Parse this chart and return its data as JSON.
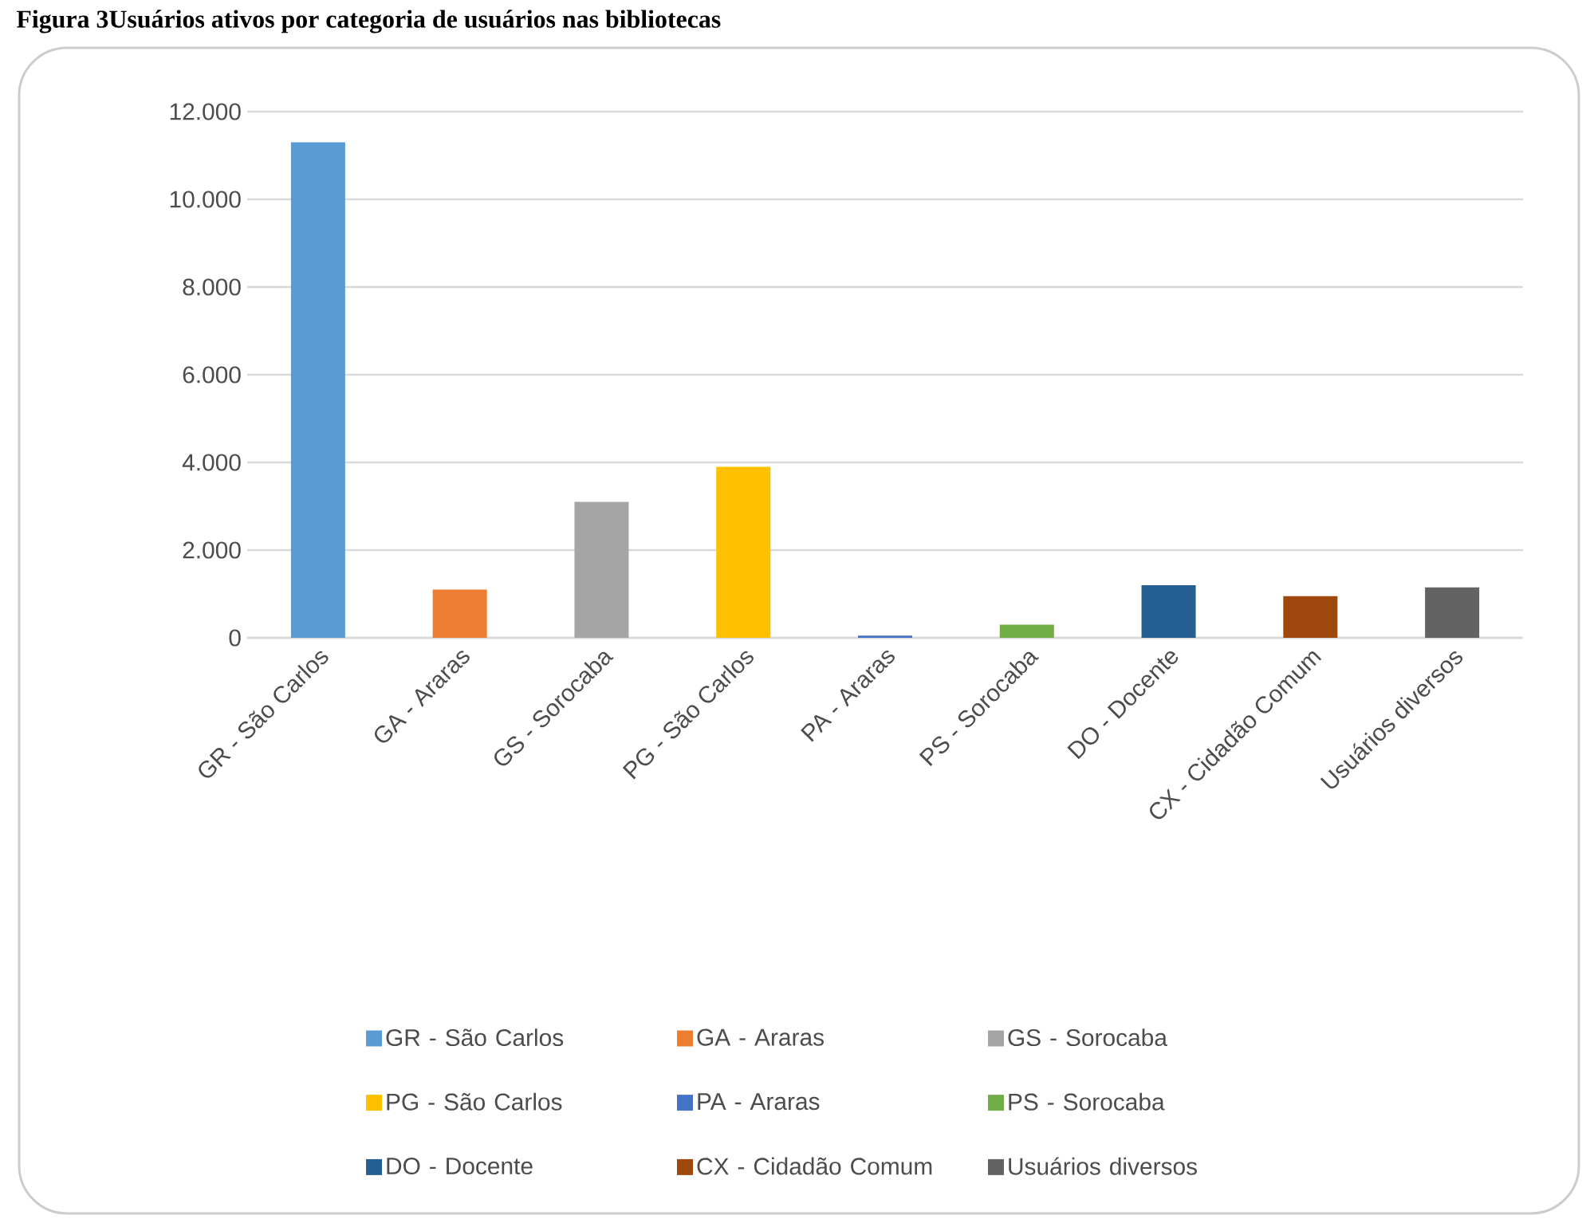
{
  "chart_data": {
    "type": "bar",
    "title": "Figura 3Usuários ativos por categoria de usuários nas bibliotecas",
    "categories": [
      "GR - São Carlos",
      "GA - Araras",
      "GS - Sorocaba",
      "PG - São Carlos",
      "PA - Araras",
      "PS - Sorocaba",
      "DO - Docente",
      "CX - Cidadão Comum",
      "Usuários diversos"
    ],
    "series": [
      {
        "name": "GR - São Carlos",
        "color": "#5b9bd5",
        "values": [
          11300,
          null,
          null,
          null,
          null,
          null,
          null,
          null,
          null
        ]
      },
      {
        "name": "GA - Araras",
        "color": "#ed7d31",
        "values": [
          null,
          1100,
          null,
          null,
          null,
          null,
          null,
          null,
          null
        ]
      },
      {
        "name": "GS - Sorocaba",
        "color": "#a5a5a5",
        "values": [
          null,
          null,
          3100,
          null,
          null,
          null,
          null,
          null,
          null
        ]
      },
      {
        "name": "PG - São Carlos",
        "color": "#ffc000",
        "values": [
          null,
          null,
          null,
          3900,
          null,
          null,
          null,
          null,
          null
        ]
      },
      {
        "name": "PA - Araras",
        "color": "#4472c4",
        "values": [
          null,
          null,
          null,
          null,
          50,
          null,
          null,
          null,
          null
        ]
      },
      {
        "name": "PS - Sorocaba",
        "color": "#70ad47",
        "values": [
          null,
          null,
          null,
          null,
          null,
          300,
          null,
          null,
          null
        ]
      },
      {
        "name": "DO - Docente",
        "color": "#255e91",
        "values": [
          null,
          null,
          null,
          null,
          null,
          null,
          1200,
          null,
          null
        ]
      },
      {
        "name": "CX - Cidadão Comum",
        "color": "#9e480e",
        "values": [
          null,
          null,
          null,
          null,
          null,
          null,
          null,
          950,
          null
        ]
      },
      {
        "name": "Usuários diversos",
        "color": "#636363",
        "values": [
          null,
          null,
          null,
          null,
          null,
          null,
          null,
          null,
          1150
        ]
      }
    ],
    "ylim": [
      0,
      12000
    ],
    "yticks": [
      {
        "value": 0,
        "label": "0"
      },
      {
        "value": 2000,
        "label": "2.000"
      },
      {
        "value": 4000,
        "label": "4.000"
      },
      {
        "value": 6000,
        "label": "6.000"
      },
      {
        "value": 8000,
        "label": "8.000"
      },
      {
        "value": 10000,
        "label": "10.000"
      },
      {
        "value": 12000,
        "label": "12.000"
      }
    ],
    "grid": "y",
    "legend": "bottom"
  }
}
